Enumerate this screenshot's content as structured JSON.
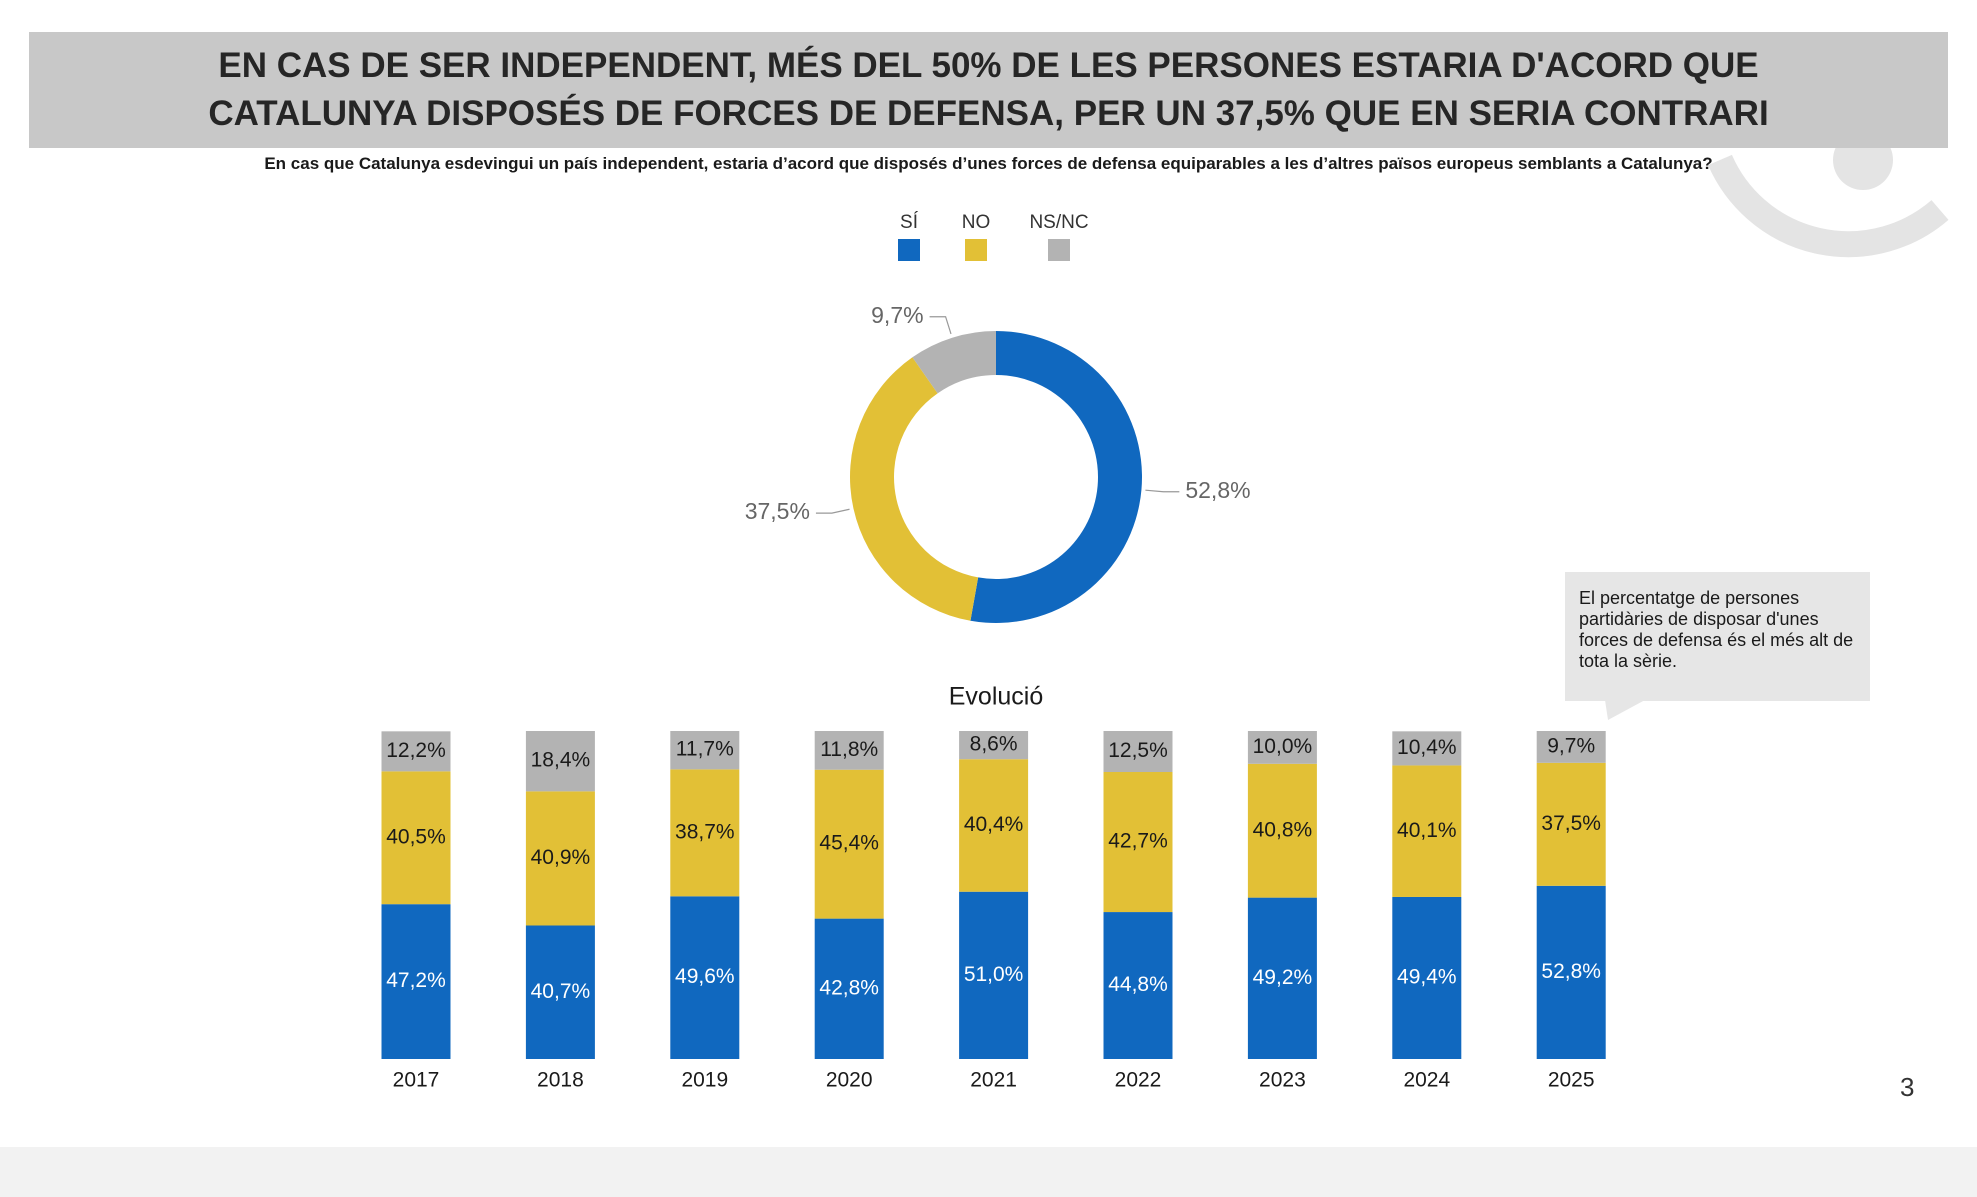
{
  "header": {
    "title": "EN CAS DE SER INDEPENDENT, MÉS DEL 50% DE LES PERSONES ESTARIA D'ACORD QUE CATALUNYA DISPOSÉS DE FORCES DE DEFENSA, PER UN 37,5% QUE EN SERIA CONTRARI",
    "subtitle": "En cas que Catalunya esdevingui un país independent, estaria d’acord que disposés d’unes forces de defensa equiparables a les d’altres països europeus semblants a Catalunya?"
  },
  "chart_data": [
    {
      "type": "donut",
      "values": [
        52.8,
        37.5,
        9.7
      ],
      "value_labels": [
        "52,8%",
        "37,5%",
        "9,7%"
      ],
      "colors": [
        "#1068bf",
        "#e2c036",
        "#b3b3b3"
      ]
    },
    {
      "type": "stacked-bar",
      "title": "Evolució",
      "categories": [
        "2017",
        "2018",
        "2019",
        "2020",
        "2021",
        "2022",
        "2023",
        "2024",
        "2025"
      ],
      "series": [
        {
          "name": "SÍ",
          "color": "#1068bf",
          "label_color": "#ffffff",
          "values": [
            47.2,
            40.7,
            49.6,
            42.8,
            51.0,
            44.8,
            49.2,
            49.4,
            52.8
          ],
          "value_labels": [
            "47,2%",
            "40,7%",
            "49,6%",
            "42,8%",
            "51,0%",
            "44,8%",
            "49,2%",
            "49,4%",
            "52,8%"
          ]
        },
        {
          "name": "NO",
          "color": "#e2c036",
          "label_color": "#1a1a1a",
          "values": [
            40.5,
            40.9,
            38.7,
            45.4,
            40.4,
            42.7,
            40.8,
            40.1,
            37.5
          ],
          "value_labels": [
            "40,5%",
            "40,9%",
            "38,7%",
            "45,4%",
            "40,4%",
            "42,7%",
            "40,8%",
            "40,1%",
            "37,5%"
          ]
        },
        {
          "name": "NS/NC",
          "color": "#b3b3b3",
          "label_color": "#1a1a1a",
          "values": [
            12.2,
            18.4,
            11.7,
            11.8,
            8.6,
            12.5,
            10.0,
            10.4,
            9.7
          ],
          "value_labels": [
            "12,2%",
            "18,4%",
            "11,7%",
            "11,8%",
            "8,6%",
            "12,5%",
            "10,0%",
            "10,4%",
            "9,7%"
          ]
        }
      ]
    }
  ],
  "note": "El percentatge de persones partidàries de disposar d'unes forces de defensa és el més alt de tota la sèrie.",
  "page_number": "3"
}
